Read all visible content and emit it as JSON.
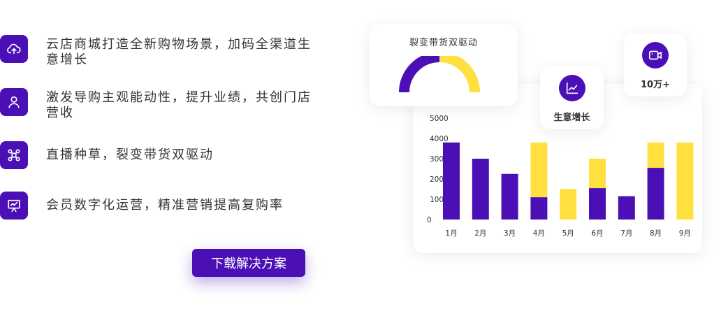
{
  "features": [
    {
      "icon": "cloud-upload-icon",
      "text": "云店商城打造全新购物场景，加码全渠道生意增长"
    },
    {
      "icon": "user-icon",
      "text": "激发导购主观能动性，提升业绩，共创门店营收"
    },
    {
      "icon": "network-icon",
      "text": "直播种草，裂变带货双驱动"
    },
    {
      "icon": "presentation-chart-icon",
      "text": "会员数字化运营，精准营销提高复购率"
    }
  ],
  "cta_label": "下载解决方案",
  "gauge_card": {
    "title": "裂变带货双驱动",
    "purple_share": 0.5,
    "colors": {
      "purple": "#4b0fb6",
      "yellow": "#ffe03f"
    }
  },
  "growth_card": {
    "icon": "line-chart-icon",
    "label": "生意增长"
  },
  "video_card": {
    "icon": "video-camera-icon",
    "label": "10万+"
  },
  "colors": {
    "brand": "#4b0fb6",
    "accent": "#ffe03f"
  },
  "chart_data": {
    "type": "bar",
    "stacked": true,
    "categories": [
      "1月",
      "2月",
      "3月",
      "4月",
      "5月",
      "6月",
      "7月",
      "8月",
      "9月"
    ],
    "series": [
      {
        "color": "#4b0fb6",
        "values": [
          3800,
          3000,
          2250,
          1100,
          0,
          1550,
          1150,
          2550,
          0
        ]
      },
      {
        "color": "#ffe03f",
        "values": [
          0,
          0,
          0,
          2700,
          1500,
          1450,
          0,
          1250,
          3800
        ]
      }
    ],
    "yticks": [
      0,
      1000,
      2000,
      3000,
      4000,
      5000
    ],
    "ylim": [
      0,
      5000
    ],
    "grid": false
  }
}
